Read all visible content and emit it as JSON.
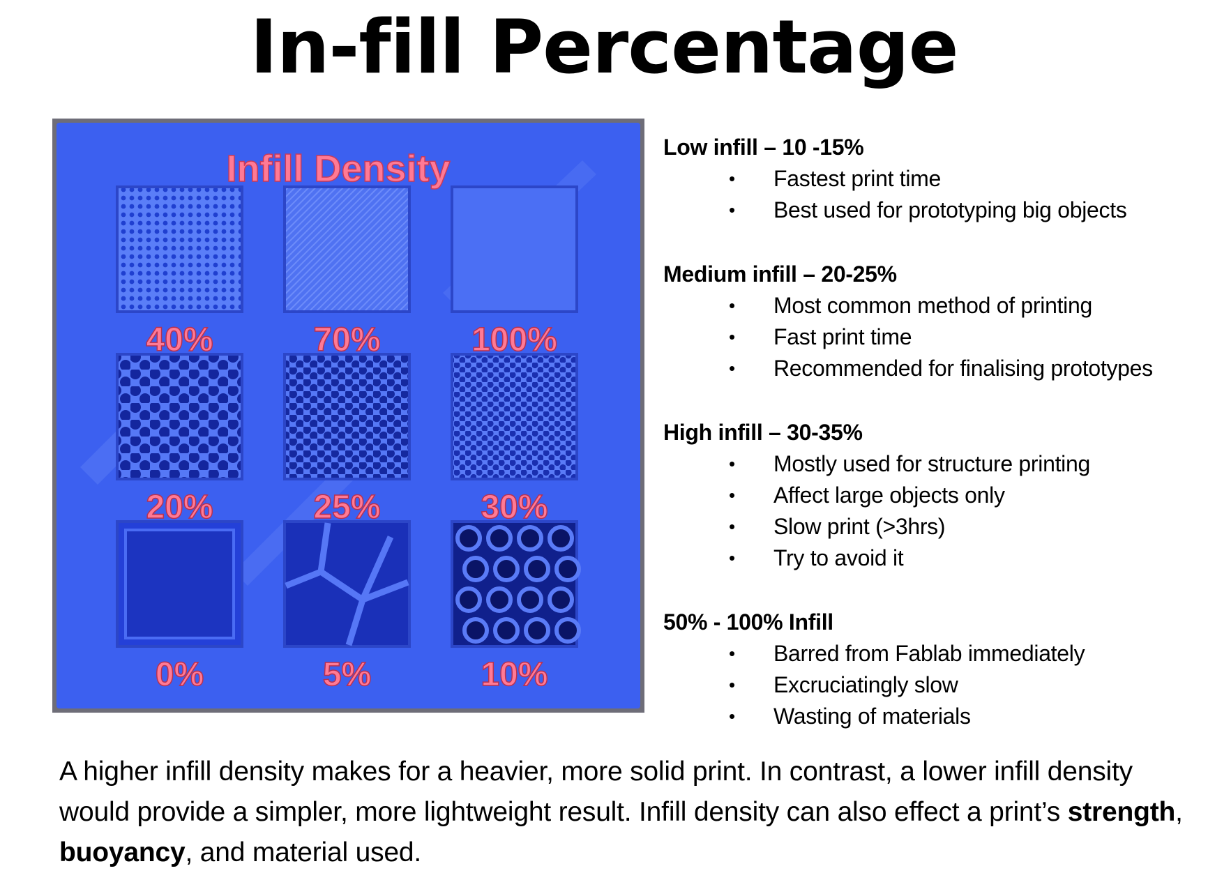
{
  "title": "In-fill Percentage",
  "photo": {
    "plate_heading": "Infill Density",
    "samples": [
      {
        "label": "40%",
        "pattern": "fine-mesh"
      },
      {
        "label": "70%",
        "pattern": "dense-lines"
      },
      {
        "label": "100%",
        "pattern": "solid"
      },
      {
        "label": "20%",
        "pattern": "honeycomb-medium"
      },
      {
        "label": "25%",
        "pattern": "honeycomb-small"
      },
      {
        "label": "30%",
        "pattern": "honeycomb-fine"
      },
      {
        "label": "0%",
        "pattern": "hollow"
      },
      {
        "label": "5%",
        "pattern": "voronoi-large"
      },
      {
        "label": "10%",
        "pattern": "voronoi-medium"
      }
    ],
    "colors": {
      "plate": "#3c60f0",
      "label": "#ff6e8c",
      "background": "#6e6d78"
    }
  },
  "sections": [
    {
      "heading": "Low infill – 10 -15%",
      "items": [
        "Fastest print time",
        "Best used for prototyping big objects"
      ]
    },
    {
      "heading": "Medium infill – 20-25%",
      "items": [
        "Most common method of printing",
        "Fast print time",
        "Recommended for finalising prototypes"
      ]
    },
    {
      "heading": "High infill – 30-35%",
      "items": [
        "Mostly used for structure printing",
        "Affect large objects only",
        "Slow print (>3hrs)",
        "Try to avoid it"
      ]
    },
    {
      "heading": "50% - 100% Infill",
      "items": [
        "Barred from Fablab immediately",
        "Excruciatingly slow",
        "Wasting of materials"
      ]
    }
  ],
  "bullet_char": "•",
  "summary": {
    "part1": "A higher infill density makes for a heavier, more solid print. In contrast, a lower infill density would provide a simpler, more lightweight result. Infill density can also effect a print’s ",
    "bold1": "strength",
    "part2": ", ",
    "bold2": "buoyancy",
    "part3": ", and material used."
  }
}
